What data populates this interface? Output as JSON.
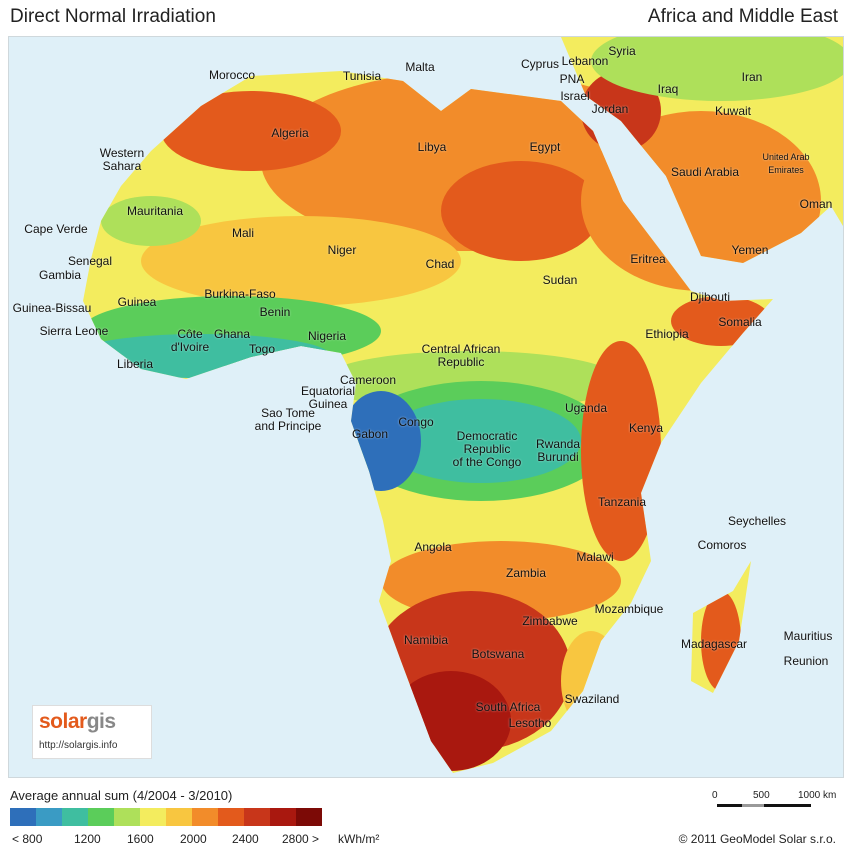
{
  "header": {
    "title_left": "Direct Normal Irradiation",
    "title_right": "Africa and Middle East"
  },
  "map": {
    "ocean_color": "#dff0f8",
    "labels": [
      "Morocco",
      "Tunisia",
      "Malta",
      "Cyprus",
      "Lebanon",
      "Syria",
      "PNA",
      "Israel",
      "Jordan",
      "Iraq",
      "Iran",
      "Kuwait",
      "Algeria",
      "Libya",
      "Egypt",
      "Western\nSahara",
      "Saudi Arabia",
      "United Arab\nEmirates",
      "Oman",
      "Mauritania",
      "Cape Verde",
      "Mali",
      "Niger",
      "Chad",
      "Sudan",
      "Eritrea",
      "Yemen",
      "Senegal",
      "Gambia",
      "Guinea-Bissau",
      "Guinea",
      "Burkina-Faso",
      "Benin",
      "Djibouti",
      "Somalia",
      "Sierra Leone",
      "Côte\nd'Ivoire",
      "Ghana",
      "Togo",
      "Nigeria",
      "Ethiopia",
      "Central African\nRepublic",
      "Liberia",
      "Cameroon",
      "Equatorial\nGuinea",
      "Sao Tome\nand Principe",
      "Gabon",
      "Congo",
      "Uganda",
      "Democratic\nRepublic\nof the Congo",
      "Rwanda\nBurundi",
      "Kenya",
      "Tanzania",
      "Seychelles",
      "Comoros",
      "Angola",
      "Malawi",
      "Zambia",
      "Mozambique",
      "Zimbabwe",
      "Namibia",
      "Botswana",
      "Madagascar",
      "Mauritius",
      "Reunion",
      "Swaziland",
      "South Africa",
      "Lesotho"
    ]
  },
  "logo": {
    "brand": "solargis",
    "url": "http://solargis.info"
  },
  "legend": {
    "title": "Average annual sum (4/2004 - 3/2010)",
    "colors": [
      "#2e6fba",
      "#3a9bc4",
      "#3fbea0",
      "#5bcd5a",
      "#aee05a",
      "#f3ec5e",
      "#f8c640",
      "#f28c2a",
      "#e35a1c",
      "#c8361a",
      "#a9180f",
      "#7c0a06"
    ],
    "ticks": [
      "< 800",
      "1200",
      "1600",
      "2000",
      "2400",
      "2800 >"
    ],
    "unit": "kWh/m²"
  },
  "scale": {
    "labels": [
      "0",
      "500",
      "1000 km"
    ]
  },
  "copyright": "© 2011 GeoModel Solar s.r.o."
}
